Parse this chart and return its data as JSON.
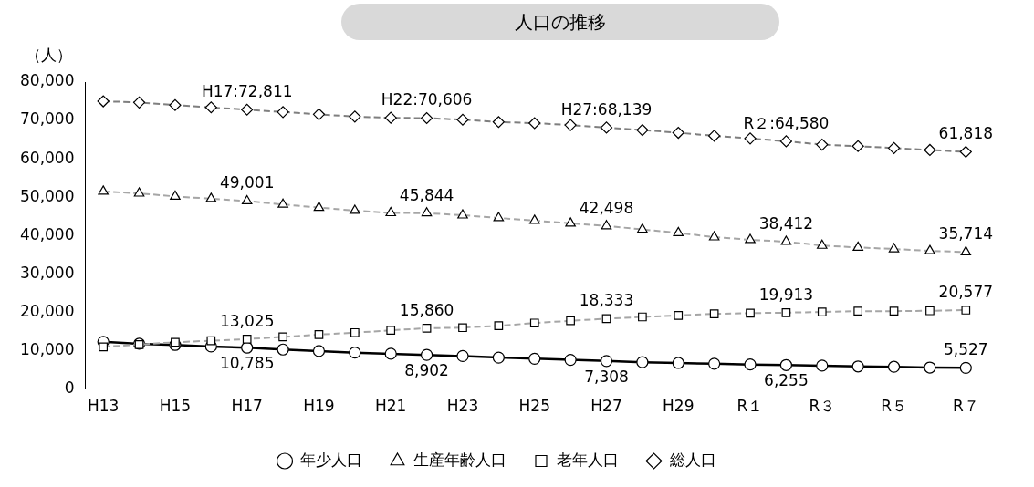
{
  "chart_data": {
    "type": "line",
    "title": "人口の推移",
    "ylabel": "（人）",
    "categories": [
      "H13",
      null,
      "H15",
      null,
      "H17",
      null,
      "H19",
      null,
      "H21",
      null,
      "H23",
      null,
      "H25",
      null,
      "H27",
      null,
      "H29",
      null,
      "R１",
      null,
      "R３",
      null,
      "R５",
      null,
      "R７"
    ],
    "series": [
      {
        "name": "年少人口",
        "color": "#000000",
        "line_style": "solid",
        "marker": "circle",
        "values": [
          12300,
          11800,
          11500,
          11100,
          10785,
          10300,
          9900,
          9500,
          9200,
          8902,
          8600,
          8200,
          7900,
          7600,
          7308,
          7000,
          6800,
          6600,
          6400,
          6255,
          6100,
          5900,
          5800,
          5600,
          5527
        ],
        "value_labels": [
          null,
          null,
          null,
          null,
          "10,785",
          null,
          null,
          null,
          null,
          "8,902",
          null,
          null,
          null,
          null,
          "7,308",
          null,
          null,
          null,
          null,
          "6,255",
          null,
          null,
          null,
          null,
          "5,527"
        ]
      },
      {
        "name": "生産年齢人口",
        "color": "#a6a6a6",
        "line_style": "dashed",
        "marker": "triangle",
        "values": [
          51500,
          51000,
          50200,
          49600,
          49001,
          48100,
          47300,
          46500,
          45900,
          45844,
          45300,
          44600,
          43900,
          43200,
          42498,
          41600,
          40700,
          39600,
          38900,
          38412,
          37400,
          36900,
          36500,
          36000,
          35714
        ],
        "value_labels": [
          null,
          null,
          null,
          null,
          "49,001",
          null,
          null,
          null,
          null,
          "45,844",
          null,
          null,
          null,
          null,
          "42,498",
          null,
          null,
          null,
          null,
          "38,412",
          null,
          null,
          null,
          null,
          "35,714"
        ]
      },
      {
        "name": "老年人口",
        "color": "#a6a6a6",
        "line_style": "dashed",
        "marker": "square",
        "values": [
          11000,
          11600,
          12200,
          12600,
          13025,
          13600,
          14200,
          14700,
          15300,
          15860,
          16000,
          16500,
          17200,
          17800,
          18333,
          18800,
          19200,
          19600,
          19800,
          19913,
          20100,
          20300,
          20300,
          20400,
          20577
        ],
        "value_labels": [
          null,
          null,
          null,
          null,
          "13,025",
          null,
          null,
          null,
          null,
          "15,860",
          null,
          null,
          null,
          null,
          "18,333",
          null,
          null,
          null,
          null,
          "19,913",
          null,
          null,
          null,
          null,
          "20,577"
        ]
      },
      {
        "name": "総人口",
        "color": "#7f7f7f",
        "line_style": "dashed",
        "marker": "diamond",
        "values": [
          75000,
          74700,
          74000,
          73400,
          72811,
          72200,
          71600,
          71000,
          70700,
          70606,
          70200,
          69600,
          69300,
          68800,
          68139,
          67500,
          66800,
          66000,
          65300,
          64580,
          63700,
          63300,
          62800,
          62300,
          61818
        ],
        "value_labels": [
          null,
          null,
          null,
          null,
          "H17:72,811",
          null,
          null,
          null,
          null,
          "H22:70,606",
          null,
          null,
          null,
          null,
          "H27:68,139",
          null,
          null,
          null,
          null,
          "R２:64,580",
          null,
          null,
          null,
          null,
          "61,818"
        ]
      }
    ],
    "ylim": [
      0,
      80000
    ],
    "yticks": [
      {
        "value": 0,
        "label": "0"
      },
      {
        "value": 10000,
        "label": "10,000"
      },
      {
        "value": 20000,
        "label": "20,000"
      },
      {
        "value": 30000,
        "label": "30,000"
      },
      {
        "value": 40000,
        "label": "40,000"
      },
      {
        "value": 50000,
        "label": "50,000"
      },
      {
        "value": 60000,
        "label": "60,000"
      },
      {
        "value": 70000,
        "label": "70,000"
      },
      {
        "value": 80000,
        "label": "80,000"
      }
    ],
    "grid": false,
    "legend": "bottom"
  }
}
